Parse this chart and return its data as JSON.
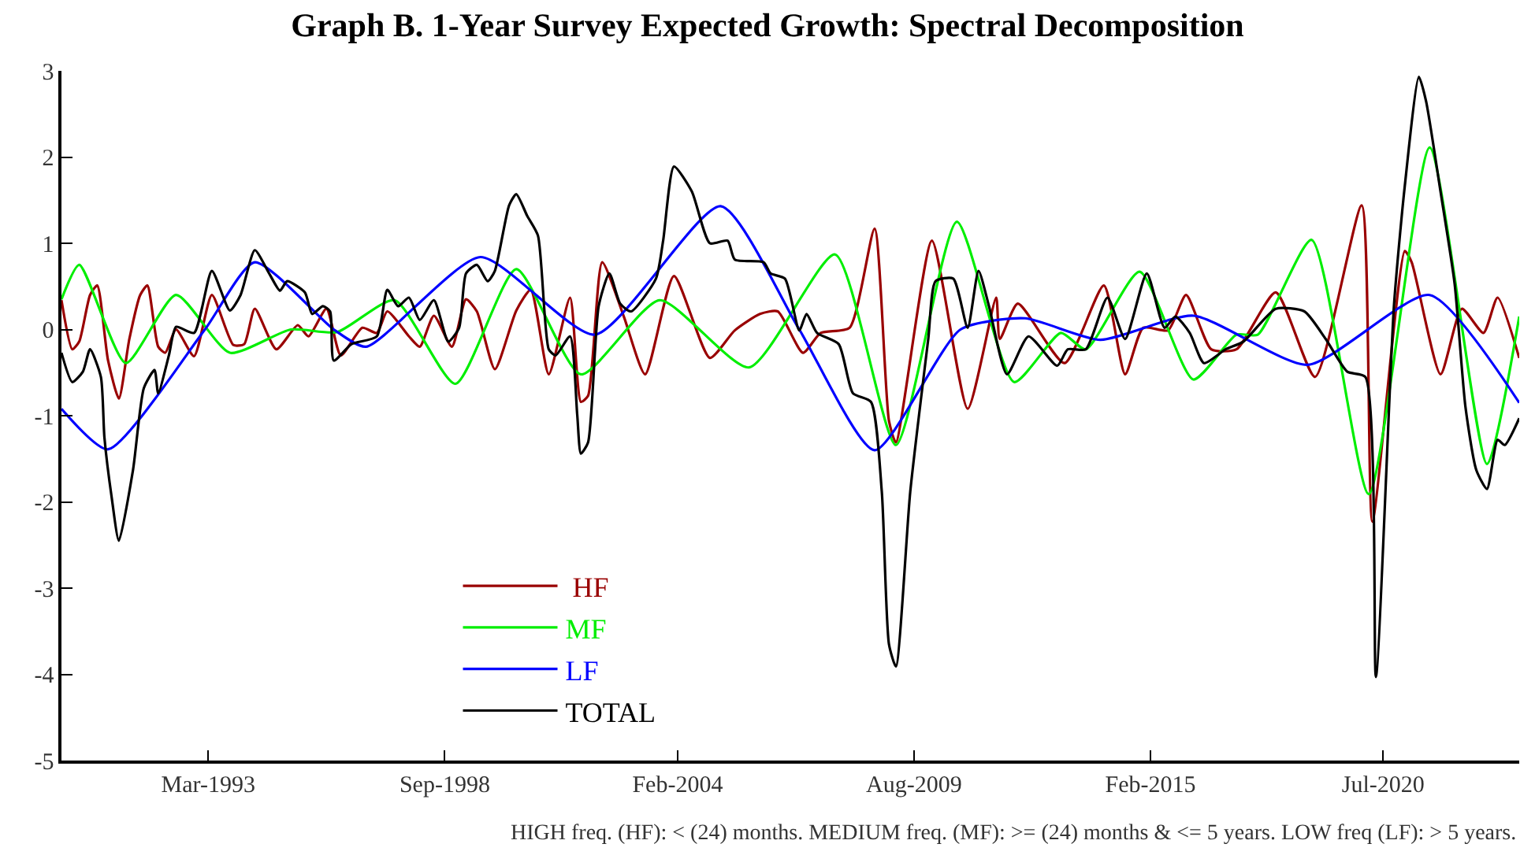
{
  "chart_data": {
    "type": "line",
    "title": "Graph B. 1-Year Survey Expected Growth: Spectral Decomposition",
    "annotations": [
      "HIGH freq. (HF): < (24) months. MEDIUM freq. (MF): >= (24) months & <= 5 years. LOW freq (LF): > 5 years."
    ],
    "xlim": [
      "1989-10",
      "2023-09"
    ],
    "xticks": [
      {
        "value": "1993-03",
        "label": "Mar-1993"
      },
      {
        "value": "1998-09",
        "label": "Sep-1998"
      },
      {
        "value": "2004-02",
        "label": "Feb-2004"
      },
      {
        "value": "2009-08",
        "label": "Aug-2009"
      },
      {
        "value": "2015-02",
        "label": "Feb-2015"
      },
      {
        "value": "2020-07",
        "label": "Jul-2020"
      }
    ],
    "ylim": [
      -5,
      3
    ],
    "yticks": [
      -5,
      -4,
      -3,
      -2,
      -1,
      0,
      1,
      2,
      3
    ],
    "grid": false,
    "legend": "bottom",
    "series": [
      {
        "name": " HF",
        "color": "#990000",
        "x": [
          "1989-10",
          "1990-01",
          "1990-03",
          "1990-06",
          "1990-08",
          "1990-11",
          "1991-02",
          "1991-05",
          "1991-08",
          "1991-10",
          "1992-01",
          "1992-03",
          "1992-06",
          "1992-11",
          "1993-04",
          "1993-10",
          "1994-01",
          "1994-04",
          "1994-10",
          "1995-04",
          "1995-07",
          "1995-12",
          "1996-04",
          "1996-10",
          "1997-02",
          "1997-05",
          "1997-11",
          "1998-02",
          "1998-06",
          "1998-11",
          "1999-03",
          "1999-06",
          "1999-11",
          "2000-05",
          "2000-09",
          "2001-02",
          "2001-08",
          "2001-11",
          "2002-01",
          "2002-05",
          "2002-11",
          "2003-05",
          "2004-01",
          "2004-11",
          "2005-06",
          "2006-01",
          "2006-06",
          "2007-01",
          "2007-06",
          "2008-02",
          "2008-09",
          "2009-01",
          "2009-03",
          "2010-01",
          "2010-11",
          "2011-07",
          "2011-08",
          "2012-01",
          "2013-02",
          "2014-01",
          "2014-07",
          "2014-12",
          "2015-07",
          "2015-12",
          "2016-07",
          "2017-02",
          "2018-01",
          "2018-12",
          "2020-01",
          "2020-04",
          "2021-01",
          "2021-03",
          "2021-11",
          "2022-05",
          "2022-11",
          "2023-03",
          "2023-09"
        ],
        "values": [
          0.34,
          -0.23,
          -0.14,
          0.4,
          0.51,
          -0.36,
          -0.8,
          -0.11,
          0.4,
          0.51,
          -0.2,
          -0.27,
          0.0,
          -0.31,
          0.4,
          -0.18,
          -0.17,
          0.24,
          -0.23,
          0.05,
          -0.08,
          0.24,
          -0.3,
          0.02,
          -0.04,
          0.21,
          -0.08,
          -0.2,
          0.16,
          -0.2,
          0.35,
          0.21,
          -0.46,
          0.22,
          0.46,
          -0.52,
          0.37,
          -0.84,
          -0.77,
          0.78,
          0.15,
          -0.52,
          0.62,
          -0.33,
          -0.01,
          0.18,
          0.21,
          -0.27,
          -0.04,
          0.02,
          1.17,
          -1.06,
          -1.31,
          1.03,
          -0.92,
          0.37,
          -0.11,
          0.3,
          -0.39,
          0.51,
          -0.52,
          0.02,
          -0.01,
          0.4,
          -0.23,
          -0.23,
          0.43,
          -0.55,
          1.44,
          -2.23,
          0.91,
          0.78,
          -0.52,
          0.24,
          -0.04,
          0.37,
          -0.33
        ]
      },
      {
        "name": "MF",
        "color": "#00ee00",
        "x": [
          "1989-10",
          "1990-03",
          "1991-04",
          "1992-06",
          "1993-09",
          "1995-02",
          "1996-03",
          "1997-07",
          "1998-12",
          "2000-05",
          "2001-11",
          "2003-09",
          "2005-10",
          "2007-10",
          "2009-03",
          "2010-08",
          "2011-12",
          "2013-01",
          "2013-08",
          "2014-11",
          "2016-02",
          "2017-02",
          "2017-08",
          "2018-11",
          "2020-03",
          "2021-08",
          "2022-12",
          "2023-09"
        ],
        "values": [
          0.35,
          0.75,
          -0.39,
          0.4,
          -0.27,
          0.0,
          -0.03,
          0.34,
          -0.63,
          0.7,
          -0.52,
          0.34,
          -0.44,
          0.87,
          -1.34,
          1.25,
          -0.61,
          -0.04,
          -0.23,
          0.67,
          -0.58,
          -0.06,
          -0.06,
          1.04,
          -1.91,
          2.11,
          -1.56,
          0.15
        ]
      },
      {
        "name": "LF",
        "color": "#0000ff",
        "x": [
          "1989-10",
          "1990-11",
          "1993-02",
          "1994-04",
          "1996-02",
          "1996-11",
          "1999-07",
          "2002-03",
          "2005-02",
          "2006-12",
          "2008-09",
          "2010-09",
          "2012-03",
          "2013-12",
          "2016-02",
          "2018-10",
          "2021-08",
          "2023-09"
        ],
        "values": [
          -0.92,
          -1.39,
          0.0,
          0.78,
          0.0,
          -0.2,
          0.84,
          -0.06,
          1.43,
          0.0,
          -1.4,
          0.0,
          0.13,
          -0.12,
          0.16,
          -0.41,
          0.4,
          -0.85
        ]
      },
      {
        "name": "TOTAL",
        "color": "#000000",
        "x": [
          "1989-10",
          "1990-01",
          "1990-04",
          "1990-06",
          "1990-09",
          "1990-10",
          "1990-12",
          "1991-02",
          "1991-06",
          "1991-09",
          "1991-12",
          "1992-01",
          "1992-04",
          "1992-06",
          "1992-11",
          "1993-04",
          "1993-09",
          "1993-12",
          "1994-04",
          "1994-08",
          "1994-11",
          "1995-01",
          "1995-06",
          "1995-08",
          "1995-11",
          "1996-01",
          "1996-02",
          "1996-07",
          "1997-02",
          "1997-05",
          "1997-08",
          "1997-11",
          "1998-02",
          "1998-06",
          "1998-10",
          "1999-01",
          "1999-03",
          "1999-06",
          "1999-09",
          "1999-11",
          "2000-03",
          "2000-05",
          "2000-08",
          "2000-11",
          "2001-02",
          "2001-04",
          "2001-08",
          "2001-10",
          "2001-11",
          "2002-01",
          "2002-04",
          "2002-07",
          "2002-10",
          "2003-01",
          "2003-08",
          "2003-10",
          "2004-01",
          "2004-06",
          "2004-11",
          "2005-04",
          "2005-06",
          "2006-02",
          "2006-04",
          "2006-08",
          "2006-12",
          "2007-02",
          "2007-05",
          "2007-11",
          "2008-03",
          "2008-08",
          "2008-11",
          "2009-01",
          "2009-03",
          "2009-07",
          "2009-12",
          "2010-02",
          "2010-07",
          "2010-11",
          "2011-02",
          "2011-05",
          "2011-10",
          "2012-04",
          "2012-12",
          "2013-03",
          "2013-08",
          "2014-02",
          "2014-07",
          "2015-01",
          "2015-06",
          "2015-09",
          "2016-01",
          "2016-05",
          "2016-11",
          "2017-04",
          "2018-01",
          "2018-09",
          "2019-03",
          "2019-09",
          "2020-02",
          "2020-05",
          "2020-10",
          "2021-01",
          "2021-05",
          "2021-07",
          "2021-11",
          "2022-03",
          "2022-06",
          "2022-09",
          "2022-12",
          "2023-03",
          "2023-05",
          "2023-09"
        ],
        "values": [
          -0.27,
          -0.61,
          -0.49,
          -0.23,
          -0.55,
          -1.25,
          -1.94,
          -2.45,
          -1.63,
          -0.68,
          -0.47,
          -0.74,
          -0.3,
          0.03,
          -0.04,
          0.68,
          0.22,
          0.4,
          0.92,
          0.65,
          0.45,
          0.56,
          0.43,
          0.18,
          0.27,
          0.21,
          -0.36,
          -0.17,
          -0.08,
          0.46,
          0.27,
          0.37,
          0.11,
          0.34,
          -0.14,
          0.02,
          0.65,
          0.75,
          0.56,
          0.68,
          1.44,
          1.57,
          1.32,
          1.09,
          -0.23,
          -0.3,
          -0.08,
          -0.99,
          -1.44,
          -1.31,
          0.27,
          0.65,
          0.3,
          0.21,
          0.59,
          1.03,
          1.89,
          1.6,
          1.0,
          1.03,
          0.81,
          0.78,
          0.65,
          0.59,
          -0.01,
          0.18,
          -0.04,
          -0.17,
          -0.74,
          -0.84,
          -1.88,
          -3.65,
          -3.91,
          -1.88,
          -0.11,
          0.56,
          0.59,
          0.02,
          0.68,
          0.27,
          -0.52,
          -0.08,
          -0.42,
          -0.23,
          -0.23,
          0.37,
          -0.11,
          0.65,
          0.02,
          0.15,
          -0.04,
          -0.39,
          -0.23,
          -0.14,
          0.24,
          0.21,
          -0.11,
          -0.49,
          -0.55,
          -4.03,
          0.27,
          1.66,
          2.93,
          2.65,
          1.6,
          0.53,
          -0.9,
          -1.63,
          -1.85,
          -1.28,
          -1.34,
          -1.03
        ]
      }
    ]
  }
}
